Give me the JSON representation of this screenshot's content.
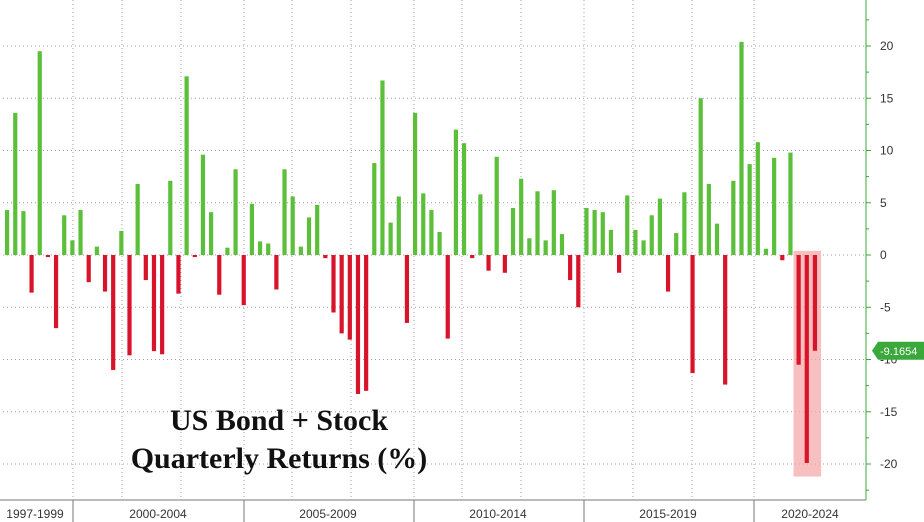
{
  "chart_data": {
    "type": "bar",
    "title_lines": [
      "US Bond + Stock",
      "Quarterly Returns (%)"
    ],
    "xlabel": "",
    "ylabel": "",
    "ylim": [
      -22.5,
      25
    ],
    "y_ticks": [
      20,
      15,
      10,
      5,
      0,
      -5,
      -10,
      -15,
      -20
    ],
    "y_tick_labels": [
      "20",
      "15",
      "10",
      "5",
      "0",
      "-5",
      "-10",
      "-15",
      "-20"
    ],
    "x_period_labels": [
      "1997-1999",
      "2000-2004",
      "2005-2009",
      "2010-2014",
      "2015-2019",
      "2020-2024"
    ],
    "grid": true,
    "positive_color": "#5bbf3a",
    "negative_color": "#d8132a",
    "highlight_color": "#f4a9a9",
    "last_value": -9.1654,
    "last_value_label": "-9.1654",
    "last_value_color": "#3aa83a",
    "series": [
      {
        "values": [
          4.3,
          13.6,
          4.2,
          -3.6,
          19.5,
          -0.2,
          -7.0,
          3.8,
          1.4,
          4.3,
          -2.6,
          0.8,
          -3.5,
          -11.0,
          2.3,
          -9.6,
          6.8,
          -2.4,
          -9.2,
          -9.5,
          7.1,
          -3.7,
          17.1,
          -0.2,
          9.6,
          4.1,
          -3.8,
          0.7,
          8.2,
          -4.8,
          4.9,
          1.3,
          1.1,
          -3.3,
          8.2,
          5.6,
          0.8,
          3.6,
          4.8,
          -0.3,
          -5.5,
          -7.5,
          -8.1,
          -13.3,
          -13.0,
          8.8,
          16.7,
          3.1,
          5.6,
          -6.5,
          13.6,
          5.9,
          4.3,
          2.2,
          -8.0,
          12.0,
          10.7,
          -0.3,
          5.8,
          -1.5,
          9.4,
          -1.7,
          4.5,
          7.3,
          1.6,
          6.1,
          1.4,
          6.2,
          2.0,
          -2.4,
          -5.0,
          4.5,
          4.3,
          4.1,
          2.4,
          -1.7,
          5.7,
          2.4,
          1.4,
          3.8,
          5.4,
          -3.5,
          2.1,
          6.0,
          -11.3,
          15.0,
          6.8,
          3.0,
          -12.4,
          7.1,
          20.4,
          8.7,
          10.8,
          0.6,
          9.3,
          -0.5,
          9.8,
          -10.5,
          -19.9,
          -9.1654
        ]
      }
    ]
  }
}
